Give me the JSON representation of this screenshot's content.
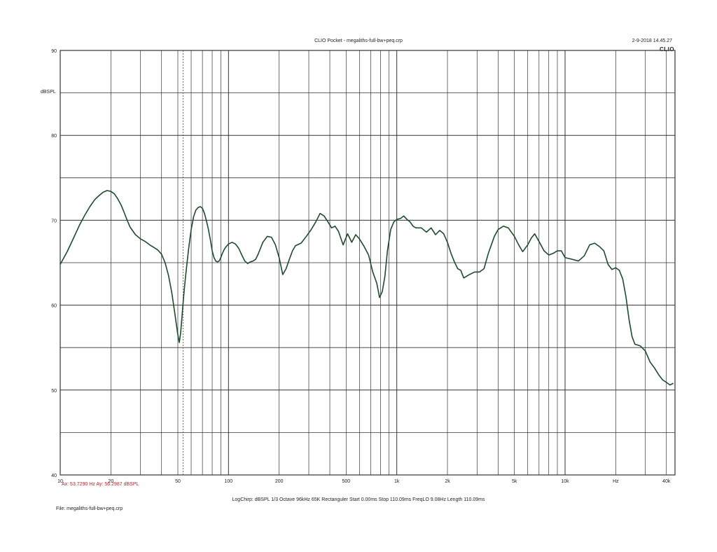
{
  "header": {
    "title": "CLIO Pocket - megaliths-full-bw+peq.crp",
    "date": "2-9-2018 14.45.27",
    "brand": "CLIO"
  },
  "cursor_readout": "Ax: 53.7290 Hz   Ay: 56.2987 dBSPL",
  "settings_line": "LogChirp:  dBSPL   1/3 Octave   96kHz   65K   Rectanguler   Start 0.00ms   Stop 110.09ms   FreqLO 9.08Hz   Length 110.09ms",
  "file_line": "File: megaliths-full-bw+peq.crp",
  "colors": {
    "trace": "#1f4a2c",
    "grid": "#333333",
    "cursor": "#b3262e"
  },
  "chart_data": {
    "type": "line",
    "title": "CLIO Pocket - megaliths-full-bw+peq.crp",
    "ylabel": "dBSPL",
    "xlabel": "",
    "x_scale": "log",
    "xlim": [
      10,
      45000
    ],
    "ylim": [
      40,
      90
    ],
    "grid": true,
    "x_tick_labels": [
      {
        "value": 10,
        "label": "10"
      },
      {
        "value": 20,
        "label": "20"
      },
      {
        "value": 50,
        "label": "50"
      },
      {
        "value": 100,
        "label": "100"
      },
      {
        "value": 200,
        "label": "200"
      },
      {
        "value": 500,
        "label": "500"
      },
      {
        "value": 1000,
        "label": "1k"
      },
      {
        "value": 2000,
        "label": "2k"
      },
      {
        "value": 5000,
        "label": "5k"
      },
      {
        "value": 10000,
        "label": "10k"
      },
      {
        "value": 20000,
        "label": "Hz"
      },
      {
        "value": 40000,
        "label": "40k"
      }
    ],
    "y_tick_labels": [
      {
        "value": 40,
        "label": "40"
      },
      {
        "value": 50,
        "label": "50"
      },
      {
        "value": 60,
        "label": "60"
      },
      {
        "value": 70,
        "label": "70"
      },
      {
        "value": 80,
        "label": "80"
      },
      {
        "value": 90,
        "label": "90"
      }
    ],
    "cursor": {
      "x": 53.729,
      "y": 56.2987
    },
    "series": [
      {
        "x": [
          10,
          11,
          12,
          13,
          14,
          15,
          16,
          17,
          18,
          19,
          20,
          21,
          22,
          23,
          24,
          25,
          26,
          28,
          30,
          32,
          34,
          36,
          38,
          40,
          42,
          44,
          46,
          48,
          50,
          51,
          52,
          53,
          54,
          55,
          56,
          58,
          60,
          62,
          64,
          66,
          68,
          70,
          72,
          74,
          76,
          78,
          80,
          82,
          84,
          86,
          88,
          90,
          92,
          94,
          96,
          98,
          100,
          105,
          110,
          115,
          120,
          125,
          130,
          135,
          140,
          145,
          150,
          160,
          170,
          180,
          190,
          200,
          210,
          220,
          230,
          240,
          250,
          270,
          290,
          310,
          330,
          350,
          370,
          390,
          410,
          430,
          450,
          480,
          510,
          540,
          570,
          600,
          640,
          680,
          720,
          760,
          790,
          820,
          850,
          880,
          920,
          960,
          1000,
          1050,
          1100,
          1150,
          1200,
          1250,
          1300,
          1400,
          1500,
          1600,
          1700,
          1800,
          1900,
          2000,
          2100,
          2200,
          2300,
          2400,
          2500,
          2700,
          2900,
          3100,
          3300,
          3500,
          3800,
          4000,
          4300,
          4600,
          5000,
          5300,
          5600,
          6000,
          6300,
          6600,
          7000,
          7500,
          8000,
          8500,
          9000,
          9500,
          10000,
          11000,
          12000,
          13000,
          14000,
          15000,
          16000,
          17000,
          18000,
          19000,
          20000,
          21000,
          22000,
          23000,
          24000,
          25000,
          26000,
          28000,
          30000,
          32000,
          34000,
          36000,
          38000,
          40000,
          42000,
          44000
        ],
        "y": [
          64.8,
          66.3,
          67.9,
          69.4,
          70.6,
          71.6,
          72.4,
          72.9,
          73.3,
          73.5,
          73.4,
          73.1,
          72.5,
          71.8,
          70.9,
          70.0,
          69.2,
          68.3,
          67.8,
          67.5,
          67.1,
          66.8,
          66.5,
          66.0,
          65.0,
          63.5,
          61.5,
          59.0,
          56.5,
          55.6,
          56.8,
          58.8,
          60.8,
          62.5,
          64.0,
          66.7,
          68.9,
          70.4,
          71.2,
          71.5,
          71.6,
          71.4,
          70.8,
          69.9,
          68.9,
          67.7,
          66.4,
          65.6,
          65.2,
          65.1,
          65.2,
          65.6,
          66.1,
          66.5,
          66.8,
          67.0,
          67.2,
          67.4,
          67.2,
          66.7,
          65.9,
          65.2,
          64.9,
          65.1,
          65.2,
          65.4,
          66.0,
          67.4,
          68.1,
          68.0,
          67.1,
          65.6,
          63.6,
          64.3,
          65.4,
          66.4,
          67.0,
          67.3,
          68.1,
          68.9,
          69.8,
          70.8,
          70.5,
          69.8,
          69.1,
          69.3,
          68.7,
          67.1,
          68.4,
          67.4,
          68.3,
          67.8,
          66.9,
          65.9,
          63.9,
          62.6,
          60.9,
          61.6,
          63.4,
          66.4,
          68.9,
          69.8,
          70.1,
          70.2,
          70.5,
          70.1,
          69.8,
          69.3,
          69.1,
          69.1,
          68.6,
          69.1,
          68.3,
          68.8,
          68.4,
          67.4,
          66.1,
          65.1,
          64.3,
          64.1,
          63.2,
          63.6,
          63.9,
          63.9,
          64.3,
          66.1,
          68.1,
          68.9,
          69.3,
          69.1,
          68.1,
          67.1,
          66.3,
          67.1,
          67.9,
          68.4,
          67.5,
          66.4,
          65.9,
          66.1,
          66.4,
          66.4,
          65.6,
          65.4,
          65.2,
          65.8,
          67.1,
          67.3,
          66.9,
          66.4,
          64.8,
          64.2,
          64.4,
          64.1,
          63.1,
          61.0,
          58.3,
          56.3,
          55.4,
          55.2,
          54.6,
          53.3,
          52.6,
          51.8,
          51.2,
          50.9,
          50.6,
          50.8
        ]
      }
    ]
  }
}
